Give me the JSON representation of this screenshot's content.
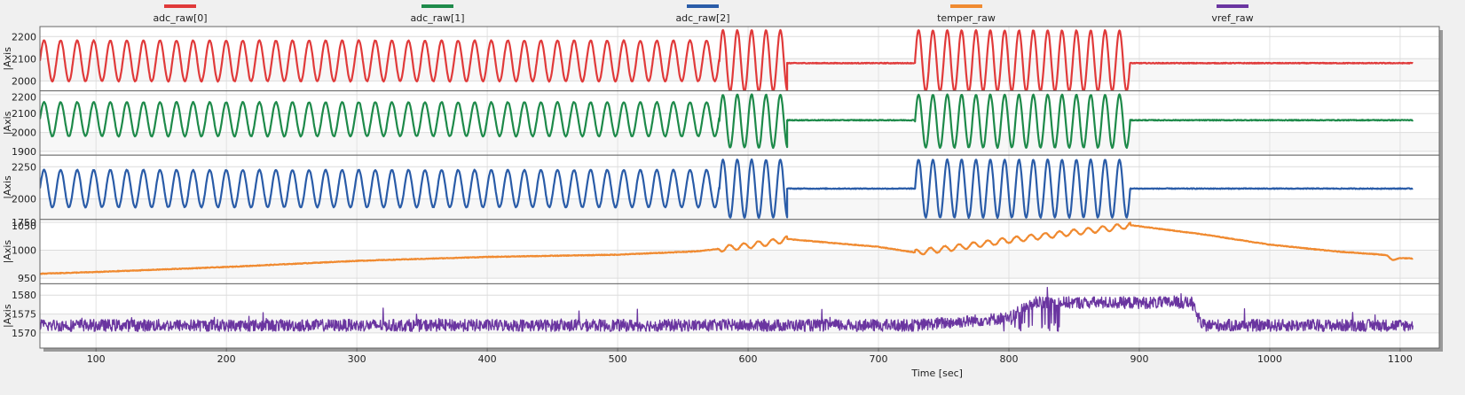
{
  "chart_data": {
    "type": "line",
    "title": "",
    "xlabel": "Time [sec]",
    "xlim": [
      57,
      1130
    ],
    "x_ticks": [
      100,
      200,
      300,
      400,
      500,
      600,
      700,
      800,
      900,
      1000,
      1100
    ],
    "legend_position": "top",
    "legend": [
      {
        "name": "adc_raw[0]",
        "color": "#e03a3a"
      },
      {
        "name": "adc_raw[1]",
        "color": "#1e8a4a"
      },
      {
        "name": "adc_raw[2]",
        "color": "#2a5ca8"
      },
      {
        "name": "temper_raw",
        "color": "#f08a30"
      },
      {
        "name": "vref_raw",
        "color": "#6a35a0"
      }
    ],
    "panels": [
      {
        "series": "adc_raw[0]",
        "color": "#e03a3a",
        "ylabel": "|Axis",
        "ylim": [
          1955,
          2245
        ],
        "y_ticks": [
          2000,
          2100,
          2200
        ],
        "segments": [
          {
            "kind": "sine",
            "x": [
              57,
              578
            ],
            "center": 2090,
            "amplitude": 92,
            "period": 12.7
          },
          {
            "kind": "sine",
            "x": [
              578,
              630
            ],
            "center": 2090,
            "amplitude": 138,
            "period": 11
          },
          {
            "kind": "flat",
            "x": [
              630,
              728
            ],
            "value": 2080
          },
          {
            "kind": "sine",
            "x": [
              728,
              893
            ],
            "center": 2090,
            "amplitude": 138,
            "period": 11
          },
          {
            "kind": "flat",
            "x": [
              893,
              1110
            ],
            "value": 2080
          }
        ]
      },
      {
        "series": "adc_raw[1]",
        "color": "#1e8a4a",
        "ylabel": "|Axis",
        "ylim": [
          1880,
          2220
        ],
        "y_ticks": [
          1900,
          2000,
          2100,
          2200
        ],
        "segments": [
          {
            "kind": "sine",
            "x": [
              57,
              578
            ],
            "center": 2070,
            "amplitude": 90,
            "period": 12.7
          },
          {
            "kind": "sine",
            "x": [
              578,
              630
            ],
            "center": 2060,
            "amplitude": 140,
            "period": 11
          },
          {
            "kind": "flat",
            "x": [
              630,
              728
            ],
            "value": 2065
          },
          {
            "kind": "sine",
            "x": [
              728,
              893
            ],
            "center": 2060,
            "amplitude": 140,
            "period": 11
          },
          {
            "kind": "flat",
            "x": [
              893,
              1110
            ],
            "value": 2065
          }
        ]
      },
      {
        "series": "adc_raw[2]",
        "color": "#2a5ca8",
        "ylabel": "|Axis",
        "ylim": [
          1840,
          2340
        ],
        "y_ticks": [
          1750,
          2000,
          2250
        ],
        "segments": [
          {
            "kind": "sine",
            "x": [
              57,
              578
            ],
            "center": 2080,
            "amplitude": 145,
            "period": 12.7
          },
          {
            "kind": "sine",
            "x": [
              578,
              630
            ],
            "center": 2080,
            "amplitude": 225,
            "period": 11
          },
          {
            "kind": "flat",
            "x": [
              630,
              728
            ],
            "value": 2080
          },
          {
            "kind": "sine",
            "x": [
              728,
              893
            ],
            "center": 2080,
            "amplitude": 225,
            "period": 11
          },
          {
            "kind": "flat",
            "x": [
              893,
              1110
            ],
            "value": 2080
          }
        ]
      },
      {
        "series": "temper_raw",
        "color": "#f08a30",
        "ylabel": "|Axis",
        "ylim": [
          940,
          1055
        ],
        "y_ticks": [
          950,
          1000,
          1050
        ],
        "points": [
          [
            57,
            958
          ],
          [
            100,
            961
          ],
          [
            200,
            970
          ],
          [
            300,
            981
          ],
          [
            400,
            988
          ],
          [
            500,
            992
          ],
          [
            560,
            998
          ],
          [
            600,
            1008
          ],
          [
            620,
            1015
          ],
          [
            630,
            1020
          ],
          [
            700,
            1006
          ],
          [
            728,
            996
          ],
          [
            760,
            1005
          ],
          [
            800,
            1018
          ],
          [
            850,
            1032
          ],
          [
            880,
            1040
          ],
          [
            893,
            1045
          ],
          [
            950,
            1028
          ],
          [
            1000,
            1010
          ],
          [
            1050,
            998
          ],
          [
            1080,
            993
          ],
          [
            1090,
            991
          ],
          [
            1094,
            982
          ],
          [
            1100,
            986
          ],
          [
            1110,
            985
          ]
        ],
        "ripple": {
          "x": [
            578,
            893
          ],
          "amplitude": 5,
          "period": 11
        }
      },
      {
        "series": "vref_raw",
        "color": "#6a35a0",
        "ylabel": "|Axis",
        "ylim": [
          1566,
          1583
        ],
        "y_ticks": [
          1570,
          1575,
          1580
        ],
        "levels": [
          [
            57,
            1572
          ],
          [
            728,
            1572
          ],
          [
            800,
            1574
          ],
          [
            820,
            1578
          ],
          [
            940,
            1578
          ],
          [
            948,
            1572
          ],
          [
            1110,
            1572
          ]
        ],
        "noise_halfwidth": 1.6
      }
    ]
  }
}
